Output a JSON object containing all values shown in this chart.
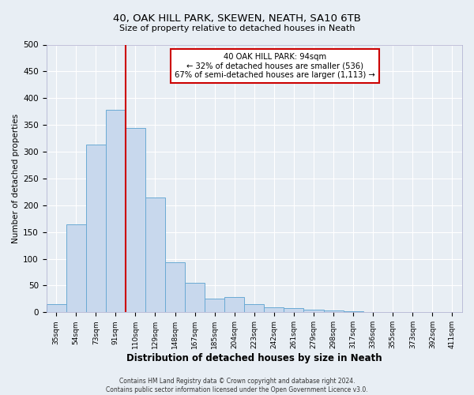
{
  "title": "40, OAK HILL PARK, SKEWEN, NEATH, SA10 6TB",
  "subtitle": "Size of property relative to detached houses in Neath",
  "xlabel": "Distribution of detached houses by size in Neath",
  "ylabel": "Number of detached properties",
  "bar_labels": [
    "35sqm",
    "54sqm",
    "73sqm",
    "91sqm",
    "110sqm",
    "129sqm",
    "148sqm",
    "167sqm",
    "185sqm",
    "204sqm",
    "223sqm",
    "242sqm",
    "261sqm",
    "279sqm",
    "298sqm",
    "317sqm",
    "336sqm",
    "355sqm",
    "373sqm",
    "392sqm",
    "411sqm"
  ],
  "bar_values": [
    15,
    165,
    313,
    378,
    345,
    215,
    93,
    55,
    25,
    29,
    15,
    10,
    8,
    5,
    3,
    2,
    1,
    0.5,
    0,
    0,
    0
  ],
  "bar_color": "#c8d8ed",
  "bar_edge_color": "#6aaad4",
  "ylim": [
    0,
    500
  ],
  "yticks": [
    0,
    50,
    100,
    150,
    200,
    250,
    300,
    350,
    400,
    450,
    500
  ],
  "property_line_color": "#cc0000",
  "annotation_text": "40 OAK HILL PARK: 94sqm\n← 32% of detached houses are smaller (536)\n67% of semi-detached houses are larger (1,113) →",
  "annotation_box_color": "#ffffff",
  "annotation_box_edge_color": "#cc0000",
  "footer_line1": "Contains HM Land Registry data © Crown copyright and database right 2024.",
  "footer_line2": "Contains public sector information licensed under the Open Government Licence v3.0.",
  "background_color": "#e8eef4",
  "plot_bg_color": "#e8eef4",
  "grid_color": "#ffffff"
}
